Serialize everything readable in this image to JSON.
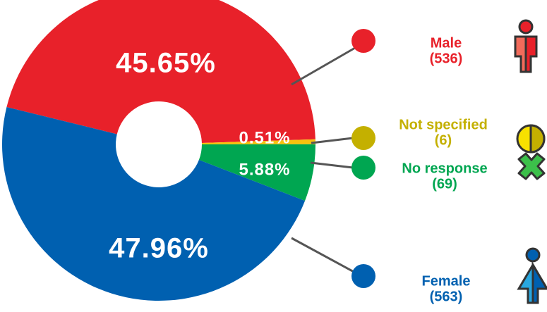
{
  "chart_data": {
    "type": "pie",
    "categories": [
      "Male",
      "Not specified",
      "No response",
      "Female"
    ],
    "values": [
      45.65,
      0.51,
      5.88,
      47.96
    ],
    "value_labels": [
      "45.65%",
      "0.51%",
      "5.88%",
      "47.96%"
    ],
    "counts": [
      536,
      6,
      69,
      563
    ],
    "count_labels": [
      "(536)",
      "(6)",
      "(69)",
      "(563)"
    ],
    "colors": [
      "#e8212a",
      "#f7c20e",
      "#00a651",
      "#0060b0"
    ],
    "label_colors": [
      "#e8212a",
      "#c4b000",
      "#00a651",
      "#0060b0"
    ]
  }
}
